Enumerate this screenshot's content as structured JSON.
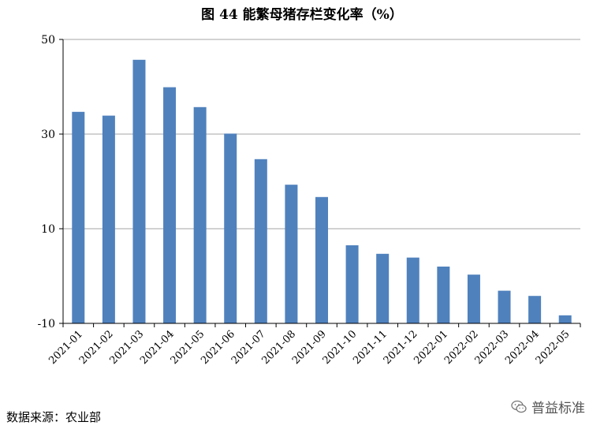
{
  "title": "图 44  能繁母猪存栏变化率（%）",
  "source": "数据来源：农业部",
  "watermark": "普益标准",
  "colors": {
    "bar": "#4F81BD",
    "grid": "#A6A6A6",
    "axis": "#000000"
  },
  "chart_data": {
    "type": "bar",
    "title": "图 44  能繁母猪存栏变化率（%）",
    "xlabel": "",
    "ylabel": "",
    "ylim": [
      -10,
      50
    ],
    "yticks": [
      -10,
      10,
      30,
      50
    ],
    "grid": true,
    "legend": "none",
    "categories": [
      "2021-01",
      "2021-02",
      "2021-03",
      "2021-04",
      "2021-05",
      "2021-06",
      "2021-07",
      "2021-08",
      "2021-09",
      "2021-10",
      "2021-11",
      "2021-12",
      "2022-01",
      "2022-02",
      "2022-03",
      "2022-04",
      "2022-05"
    ],
    "values": [
      34.7,
      33.9,
      45.7,
      39.9,
      35.7,
      30.1,
      24.7,
      19.3,
      16.7,
      6.5,
      4.7,
      3.9,
      2.0,
      0.3,
      -3.1,
      -4.2,
      -8.3
    ]
  }
}
